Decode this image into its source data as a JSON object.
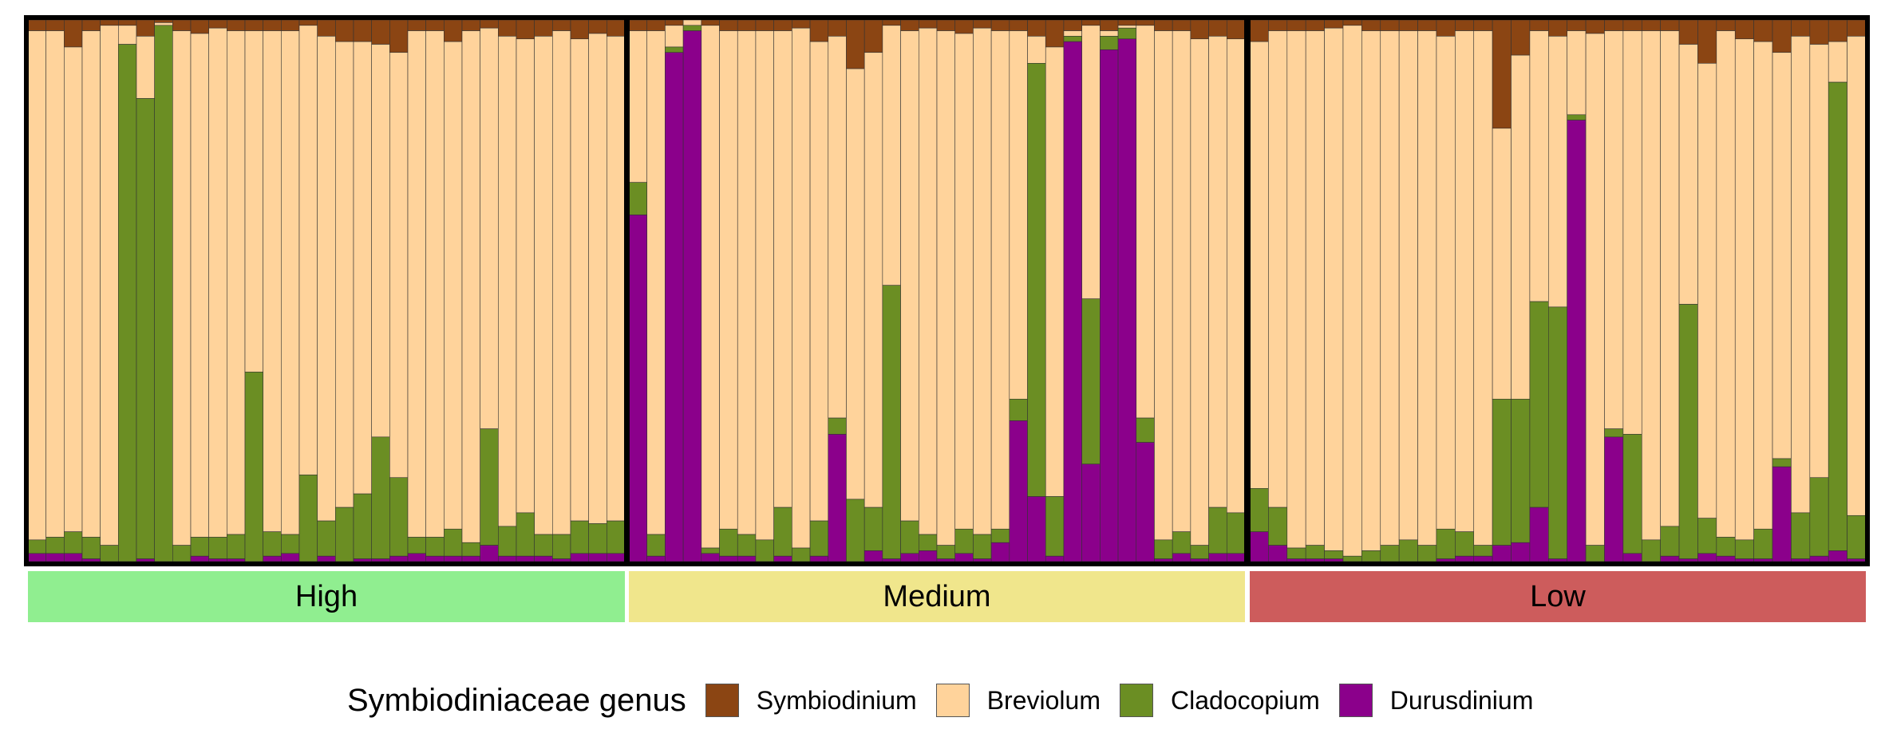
{
  "chart_data": {
    "type": "stacked-bar",
    "title": "",
    "xlabel": "",
    "ylabel": "",
    "ylim": [
      0,
      1
    ],
    "grid": false,
    "legend_position": "bottom",
    "legend_title": "Symbiodiniaceae genus",
    "series": [
      {
        "name": "Symbiodinium",
        "color": "#8B4513"
      },
      {
        "name": "Breviolum",
        "color": "#FFD39B"
      },
      {
        "name": "Cladocopium",
        "color": "#6B8E23"
      },
      {
        "name": "Durusdinium",
        "color": "#8B008B"
      }
    ],
    "panels": [
      {
        "label": "High",
        "color": "#90EE90",
        "samples": [
          [
            0.02,
            0.94,
            0.025,
            0.015
          ],
          [
            0.02,
            0.935,
            0.03,
            0.015
          ],
          [
            0.05,
            0.895,
            0.04,
            0.015
          ],
          [
            0.02,
            0.935,
            0.04,
            0.005
          ],
          [
            0.01,
            0.96,
            0.03,
            0.0
          ],
          [
            0.01,
            0.035,
            0.955,
            0.0
          ],
          [
            0.03,
            0.115,
            0.85,
            0.005
          ],
          [
            0.005,
            0.005,
            0.99,
            0.0
          ],
          [
            0.02,
            0.95,
            0.03,
            0.0
          ],
          [
            0.025,
            0.93,
            0.035,
            0.01
          ],
          [
            0.015,
            0.94,
            0.04,
            0.005
          ],
          [
            0.02,
            0.93,
            0.045,
            0.005
          ],
          [
            0.02,
            0.63,
            0.35,
            0.0
          ],
          [
            0.02,
            0.925,
            0.045,
            0.01
          ],
          [
            0.02,
            0.93,
            0.035,
            0.015
          ],
          [
            0.01,
            0.83,
            0.16,
            0.0
          ],
          [
            0.03,
            0.895,
            0.065,
            0.01
          ],
          [
            0.04,
            0.86,
            0.1,
            0.0
          ],
          [
            0.04,
            0.835,
            0.12,
            0.005
          ],
          [
            0.045,
            0.725,
            0.225,
            0.005
          ],
          [
            0.06,
            0.785,
            0.145,
            0.01
          ],
          [
            0.02,
            0.935,
            0.03,
            0.015
          ],
          [
            0.02,
            0.935,
            0.035,
            0.01
          ],
          [
            0.04,
            0.9,
            0.05,
            0.01
          ],
          [
            0.02,
            0.945,
            0.025,
            0.01
          ],
          [
            0.015,
            0.74,
            0.215,
            0.03
          ],
          [
            0.03,
            0.905,
            0.055,
            0.01
          ],
          [
            0.035,
            0.875,
            0.08,
            0.01
          ],
          [
            0.03,
            0.92,
            0.04,
            0.01
          ],
          [
            0.02,
            0.93,
            0.045,
            0.005
          ],
          [
            0.035,
            0.89,
            0.06,
            0.015
          ],
          [
            0.025,
            0.905,
            0.055,
            0.015
          ],
          [
            0.03,
            0.895,
            0.06,
            0.015
          ]
        ]
      },
      {
        "label": "Medium",
        "color": "#F0E68C",
        "samples": [
          [
            0.02,
            0.28,
            0.06,
            0.64
          ],
          [
            0.02,
            0.93,
            0.04,
            0.01
          ],
          [
            0.01,
            0.04,
            0.01,
            0.94
          ],
          [
            0.0,
            0.01,
            0.01,
            0.98
          ],
          [
            0.01,
            0.965,
            0.01,
            0.015
          ],
          [
            0.02,
            0.92,
            0.05,
            0.01
          ],
          [
            0.02,
            0.93,
            0.04,
            0.01
          ],
          [
            0.02,
            0.94,
            0.04,
            0.0
          ],
          [
            0.02,
            0.88,
            0.09,
            0.01
          ],
          [
            0.015,
            0.96,
            0.025,
            0.0
          ],
          [
            0.04,
            0.885,
            0.065,
            0.01
          ],
          [
            0.03,
            0.705,
            0.03,
            0.235
          ],
          [
            0.09,
            0.795,
            0.115,
            0.0
          ],
          [
            0.06,
            0.84,
            0.08,
            0.02
          ],
          [
            0.01,
            0.48,
            0.505,
            0.005
          ],
          [
            0.02,
            0.905,
            0.06,
            0.015
          ],
          [
            0.015,
            0.935,
            0.03,
            0.02
          ],
          [
            0.02,
            0.95,
            0.025,
            0.005
          ],
          [
            0.025,
            0.915,
            0.045,
            0.015
          ],
          [
            0.015,
            0.935,
            0.045,
            0.005
          ],
          [
            0.02,
            0.92,
            0.025,
            0.035
          ],
          [
            0.02,
            0.68,
            0.04,
            0.26
          ],
          [
            0.03,
            0.05,
            0.8,
            0.12
          ],
          [
            0.05,
            0.83,
            0.11,
            0.01
          ],
          [
            0.02,
            0.01,
            0.01,
            0.96
          ],
          [
            0.01,
            0.505,
            0.305,
            0.18
          ],
          [
            0.02,
            0.01,
            0.025,
            0.945
          ],
          [
            0.01,
            0.005,
            0.02,
            0.965
          ],
          [
            0.01,
            0.725,
            0.045,
            0.22
          ],
          [
            0.02,
            0.94,
            0.035,
            0.005
          ],
          [
            0.02,
            0.925,
            0.04,
            0.015
          ],
          [
            0.035,
            0.935,
            0.025,
            0.005
          ],
          [
            0.03,
            0.87,
            0.085,
            0.015
          ],
          [
            0.035,
            0.875,
            0.075,
            0.015
          ]
        ]
      },
      {
        "label": "Low",
        "color": "#CD5C5C",
        "samples": [
          [
            0.04,
            0.825,
            0.08,
            0.055
          ],
          [
            0.02,
            0.88,
            0.07,
            0.03
          ],
          [
            0.02,
            0.955,
            0.02,
            0.005
          ],
          [
            0.02,
            0.95,
            0.025,
            0.005
          ],
          [
            0.015,
            0.965,
            0.015,
            0.005
          ],
          [
            0.01,
            0.98,
            0.01,
            0.0
          ],
          [
            0.02,
            0.96,
            0.02,
            0.0
          ],
          [
            0.02,
            0.95,
            0.03,
            0.0
          ],
          [
            0.02,
            0.94,
            0.04,
            0.0
          ],
          [
            0.02,
            0.95,
            0.03,
            0.0
          ],
          [
            0.03,
            0.91,
            0.055,
            0.005
          ],
          [
            0.02,
            0.925,
            0.045,
            0.01
          ],
          [
            0.02,
            0.95,
            0.02,
            0.01
          ],
          [
            0.2,
            0.5,
            0.27,
            0.03
          ],
          [
            0.065,
            0.635,
            0.265,
            0.035
          ],
          [
            0.02,
            0.5,
            0.38,
            0.1
          ],
          [
            0.03,
            0.5,
            0.465,
            0.005
          ],
          [
            0.02,
            0.155,
            0.01,
            0.815
          ],
          [
            0.025,
            0.945,
            0.03,
            0.0
          ],
          [
            0.02,
            0.735,
            0.015,
            0.23
          ],
          [
            0.02,
            0.745,
            0.22,
            0.015
          ],
          [
            0.02,
            0.94,
            0.04,
            0.0
          ],
          [
            0.02,
            0.915,
            0.055,
            0.01
          ],
          [
            0.045,
            0.48,
            0.47,
            0.005
          ],
          [
            0.08,
            0.84,
            0.065,
            0.015
          ],
          [
            0.02,
            0.935,
            0.035,
            0.01
          ],
          [
            0.035,
            0.925,
            0.035,
            0.005
          ],
          [
            0.04,
            0.9,
            0.055,
            0.005
          ],
          [
            0.06,
            0.75,
            0.015,
            0.175
          ],
          [
            0.03,
            0.88,
            0.085,
            0.005
          ],
          [
            0.045,
            0.8,
            0.145,
            0.01
          ],
          [
            0.04,
            0.075,
            0.865,
            0.02
          ],
          [
            0.03,
            0.885,
            0.08,
            0.005
          ]
        ]
      }
    ]
  }
}
